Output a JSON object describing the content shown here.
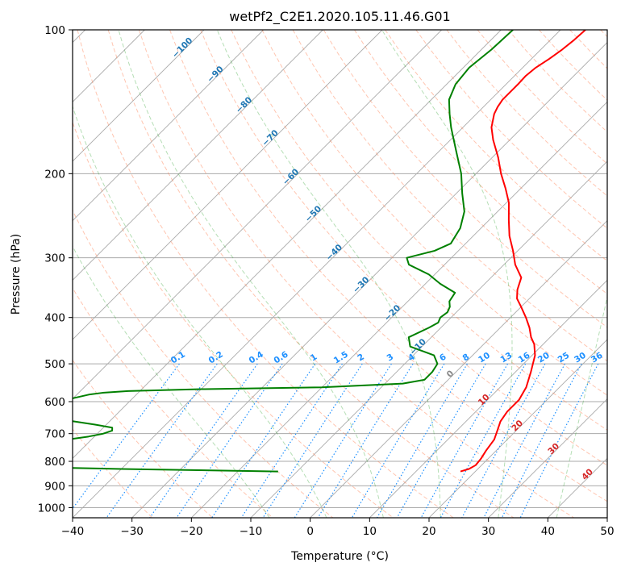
{
  "chart_data": {
    "type": "line",
    "title": "wetPf2_C2E1.2020.105.11.46.G01",
    "xlabel": "Temperature (°C)",
    "ylabel": "Pressure (hPa)",
    "xlim": [
      -40,
      50
    ],
    "ylim": [
      1050,
      100
    ],
    "y_scale": "log",
    "x_ticks": [
      -40,
      -30,
      -20,
      -10,
      0,
      10,
      20,
      30,
      40,
      50
    ],
    "y_ticks": [
      100,
      200,
      300,
      400,
      500,
      600,
      700,
      800,
      900,
      1000
    ],
    "grid": true,
    "series": [
      {
        "color": "#ff0000",
        "pressure": [
          840,
          830,
          815,
          790,
          760,
          720,
          680,
          660,
          630,
          595,
          560,
          520,
          480,
          455,
          440,
          420,
          400,
          380,
          365,
          350,
          330,
          310,
          290,
          270,
          250,
          230,
          215,
          200,
          185,
          170,
          160,
          150,
          145,
          140,
          130,
          125,
          120,
          115,
          110,
          105,
          100
        ],
        "temperature": [
          17.5,
          18.5,
          19.0,
          18.8,
          18.3,
          17.8,
          16.5,
          15.8,
          15.3,
          15.3,
          14.4,
          12.6,
          10.5,
          8.5,
          6.8,
          4.9,
          2.6,
          0.0,
          -2.1,
          -3.5,
          -4.9,
          -8.1,
          -10.8,
          -13.9,
          -16.7,
          -19.6,
          -22.5,
          -25.8,
          -29.0,
          -32.8,
          -35.2,
          -37.0,
          -37.6,
          -38.0,
          -38.0,
          -38.1,
          -37.8,
          -37.0,
          -36.4,
          -36.0,
          -35.8
        ]
      },
      {
        "color": "#008000",
        "pressure": [
          840,
          830,
          820,
          815,
          808,
          800,
          790,
          780,
          775,
          770,
          760,
          750,
          740,
          730,
          720,
          710,
          700,
          690,
          680,
          670,
          660,
          650,
          640,
          630,
          620,
          610,
          600,
          590,
          580,
          575,
          570,
          565,
          560,
          550,
          540,
          520,
          500,
          480,
          460,
          440,
          420,
          410,
          400,
          390,
          380,
          370,
          355,
          340,
          325,
          310,
          300,
          290,
          280,
          260,
          240,
          220,
          200,
          180,
          160,
          150,
          140,
          130,
          120,
          110,
          100
        ],
        "temperature": [
          -13.2,
          -40.0,
          -60.0,
          -64.0,
          -72.5,
          -70.0,
          -69.0,
          -74.0,
          -72.0,
          -72.0,
          -80.0,
          -72.0,
          -67.0,
          -57.0,
          -54.0,
          -51.0,
          -49.0,
          -48.0,
          -48.5,
          -52.0,
          -56.0,
          -60.0,
          -63.0,
          -63.0,
          -62.0,
          -62.0,
          -61.0,
          -60.0,
          -58.0,
          -56.0,
          -52.0,
          -40.0,
          -20.0,
          -7.0,
          -4.0,
          -4.0,
          -4.5,
          -6.5,
          -12.0,
          -13.8,
          -12.0,
          -11.3,
          -11.8,
          -11.5,
          -12.0,
          -13.0,
          -13.5,
          -17.5,
          -21.0,
          -26.0,
          -27.5,
          -24.0,
          -22.5,
          -23.5,
          -25.6,
          -29.0,
          -32.5,
          -37.0,
          -42.0,
          -44.5,
          -47.0,
          -48.5,
          -49.0,
          -48.3,
          -48.0
        ]
      }
    ],
    "dry_adiabat_temps": [
      -30,
      -20,
      -10,
      0,
      10,
      20,
      30,
      40,
      50,
      60,
      70,
      80,
      90,
      100,
      110,
      120,
      130,
      140,
      150,
      160,
      170,
      180,
      190,
      200
    ],
    "moist_adiabat_temps": [
      -10,
      0,
      10,
      20,
      30,
      40
    ],
    "mixing_ratios": [
      0.1,
      0.2,
      0.4,
      0.6,
      1,
      1.5,
      2,
      3,
      4,
      6,
      8,
      10,
      13,
      16,
      20,
      25,
      30,
      36
    ],
    "mixing_ratio_labels": [
      "0.1",
      "0.2",
      "0.4",
      "0.6",
      "1",
      "1.5",
      "2",
      "3",
      "4",
      "6",
      "8",
      "10",
      "13",
      "16",
      "20",
      "25",
      "30",
      "36"
    ],
    "isotherm_label_values": [
      -100,
      -90,
      -80,
      -70,
      -60,
      -50,
      -40,
      -30,
      -20,
      -10
    ],
    "isotherm_labels": [
      "-100",
      "-90",
      "-80",
      "-70",
      "-60",
      "-50",
      "-40",
      "-30",
      "-20",
      "-10"
    ],
    "wetbulb_label_values": [
      0,
      10,
      20,
      30,
      40
    ],
    "wetbulb_labels": [
      "0",
      "10",
      "20",
      "30",
      "40"
    ],
    "colors": {
      "temperature": "#ff0000",
      "dewpoint": "#008000",
      "isotherm": "#aaaaaa",
      "isobar": "#aaaaaa",
      "dry_adiabat": "#ff7f50",
      "moist_adiabat": "#2ca02c",
      "mixing_ratio": "#1e90ff",
      "isotherm_label": "#1f77b4",
      "wetbulb_label": "#d62728"
    }
  }
}
